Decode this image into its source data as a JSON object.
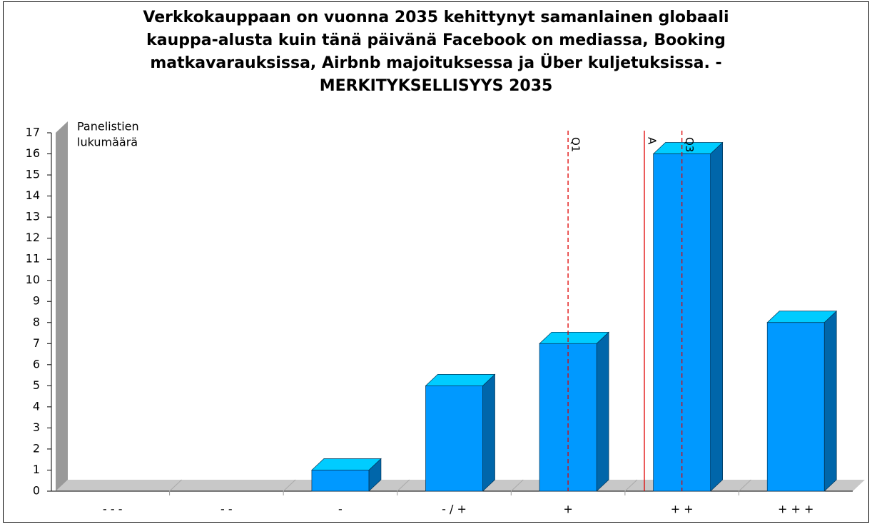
{
  "chart_data": {
    "type": "bar3d",
    "title": [
      "Verkkokauppaan on vuonna 2035 kehittynyt samanlainen globaali",
      "kauppa-alusta kuin tänä päivänä Facebook on mediassa, Booking",
      "matkavarauksissa, Airbnb majoituksessa ja Über kuljetuksissa. -",
      "MERKITYKSELLISYYS 2035"
    ],
    "y_label": [
      "Panelistien",
      "lukumäärä"
    ],
    "categories": [
      "- - -",
      "- -",
      "-",
      "- / +",
      "+",
      "+ +",
      "+ + +"
    ],
    "values": [
      0,
      0,
      1,
      5,
      7,
      16,
      8
    ],
    "color": "#0099ff",
    "ylim": [
      0,
      17
    ],
    "yticks": [
      0,
      1,
      2,
      3,
      4,
      5,
      6,
      7,
      8,
      9,
      10,
      11,
      12,
      13,
      14,
      15,
      16,
      17
    ],
    "markers": [
      {
        "label": "Q1",
        "position": 4,
        "style": "dashed"
      },
      {
        "label": "A",
        "position": 4.67,
        "style": "solid"
      },
      {
        "label": "Q3",
        "position": 5,
        "style": "dashed"
      }
    ]
  }
}
